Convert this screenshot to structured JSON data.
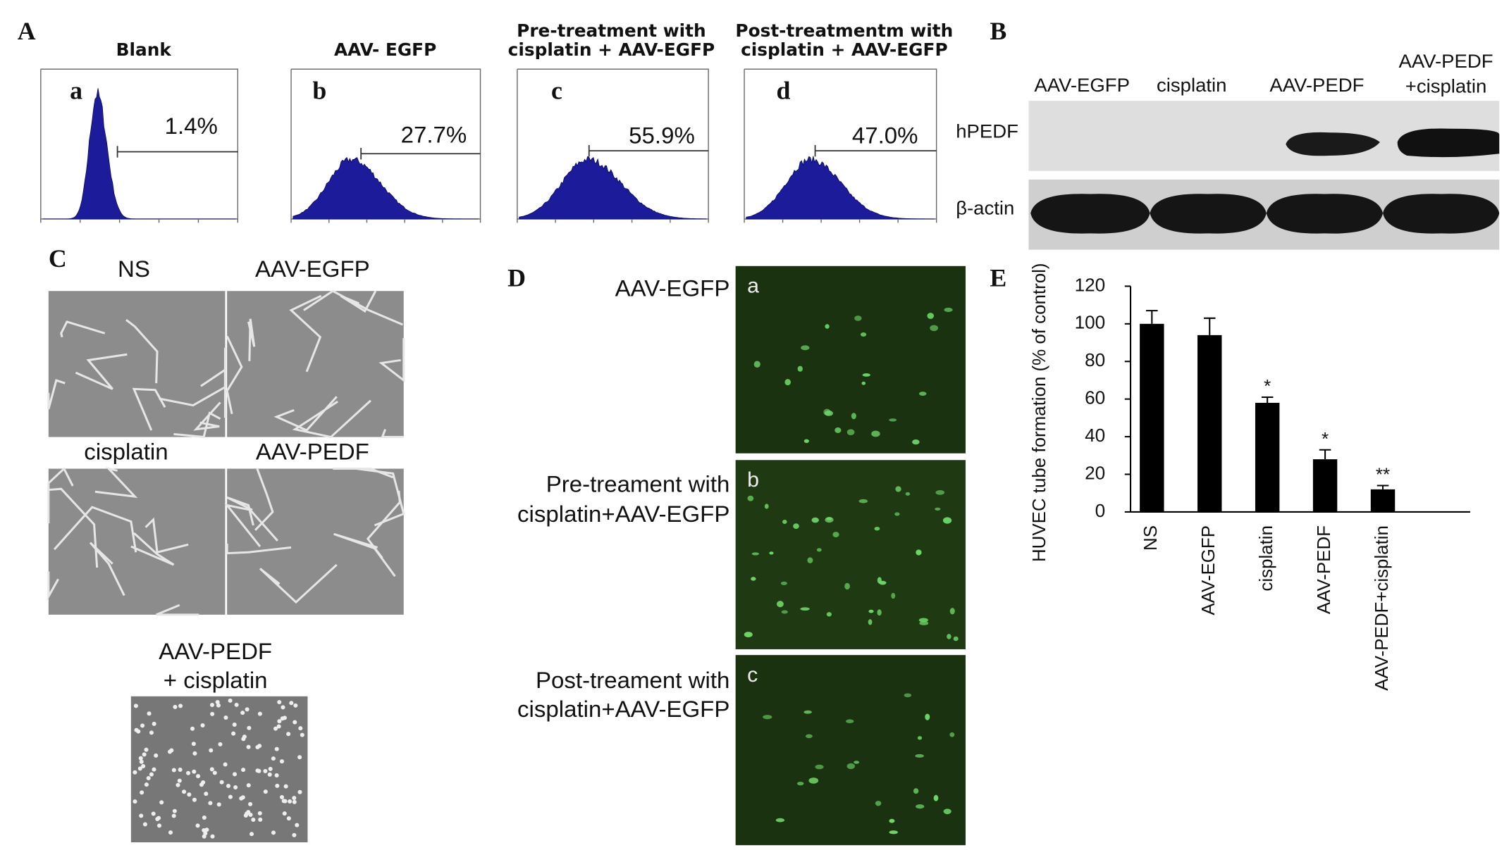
{
  "panel_A": {
    "label": "A",
    "plots": [
      {
        "title_lines": [
          "Blank"
        ],
        "letter": "a",
        "gate_percent": "1.4%"
      },
      {
        "title_lines": [
          "AAV- EGFP"
        ],
        "letter": "b",
        "gate_percent": "27.7%"
      },
      {
        "title_lines": [
          "Pre-treatment with",
          "cisplatin + AAV-EGFP"
        ],
        "letter": "c",
        "gate_percent": "55.9%"
      },
      {
        "title_lines": [
          "Post-treatmentm with",
          "cisplatin + AAV-EGFP"
        ],
        "letter": "d",
        "gate_percent": "47.0%"
      }
    ]
  },
  "panel_B": {
    "label": "B",
    "lanes": [
      [
        "AAV-EGFP"
      ],
      [
        "cisplatin"
      ],
      [
        "AAV-PEDF"
      ],
      [
        "AAV-PEDF",
        "+cisplatin"
      ]
    ],
    "rows": [
      "hPEDF",
      "β-actin"
    ]
  },
  "panel_C": {
    "label": "C",
    "images": [
      {
        "caption_lines": [
          "NS"
        ]
      },
      {
        "caption_lines": [
          "AAV-EGFP"
        ]
      },
      {
        "caption_lines": [
          "cisplatin"
        ]
      },
      {
        "caption_lines": [
          "AAV-PEDF"
        ]
      },
      {
        "caption_lines": [
          "AAV-PEDF",
          "+ cisplatin"
        ]
      }
    ]
  },
  "panel_D": {
    "label": "D",
    "rows": [
      {
        "caption_lines": [
          "AAV-EGFP"
        ],
        "letter": "a"
      },
      {
        "caption_lines": [
          "Pre-treament with",
          "cisplatin+AAV-EGFP"
        ],
        "letter": "b"
      },
      {
        "caption_lines": [
          "Post-treament with",
          "cisplatin+AAV-EGFP"
        ],
        "letter": "c"
      }
    ]
  },
  "panel_E": {
    "label": "E"
  },
  "chart_data": {
    "type": "bar",
    "ylabel": "HUVEC tube formation (% of control)",
    "categories": [
      "NS",
      "AAV-EGFP",
      "cisplatin",
      "AAV-PEDF",
      "AAV-PEDF+cisplatin"
    ],
    "values": [
      100,
      94,
      58,
      28,
      12
    ],
    "errors": [
      7,
      9,
      3,
      5,
      2
    ],
    "significance": [
      null,
      null,
      "*",
      "*",
      "**"
    ],
    "color": "#000000",
    "ylim": [
      0,
      120
    ],
    "yticks": [
      0,
      20,
      40,
      60,
      80,
      100,
      120
    ]
  }
}
